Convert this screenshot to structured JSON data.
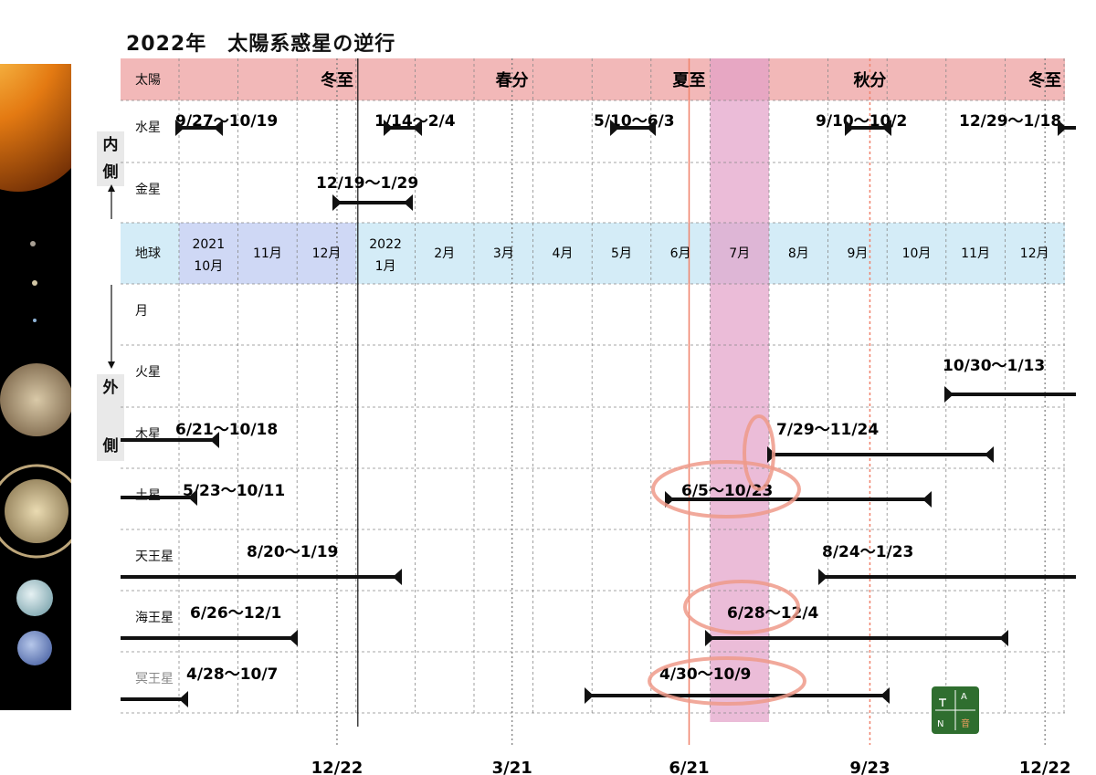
{
  "title": "2022年　太陽系惑星の逆行",
  "side": {
    "inner": [
      "内",
      "側"
    ],
    "outer": [
      "外",
      "側"
    ]
  },
  "rows": [
    {
      "label": "太陽",
      "key": "sun"
    },
    {
      "label": "水星",
      "key": "mercury"
    },
    {
      "label": "金星",
      "key": "venus"
    },
    {
      "label": "地球",
      "key": "earth"
    },
    {
      "label": "月",
      "key": "moon"
    },
    {
      "label": "火星",
      "key": "mars"
    },
    {
      "label": "木星",
      "key": "jupiter"
    },
    {
      "label": "土星",
      "key": "saturn"
    },
    {
      "label": "天王星",
      "key": "uranus"
    },
    {
      "label": "海王星",
      "key": "neptune"
    },
    {
      "label": "冥王星",
      "key": "pluto"
    }
  ],
  "sun_markers": [
    "冬至",
    "春分",
    "夏至",
    "秋分",
    "冬至"
  ],
  "months": [
    "2021\n10月",
    "11月",
    "12月",
    "2022\n1月",
    "2月",
    "3月",
    "4月",
    "5月",
    "6月",
    "7月",
    "8月",
    "9月",
    "10月",
    "11月",
    "12月"
  ],
  "bottom_dates": [
    "12/22",
    "3/21",
    "6/21",
    "9/23",
    "12/22"
  ],
  "retrogrades": [
    {
      "planet": "mercury",
      "label": "9/27〜10/19"
    },
    {
      "planet": "mercury",
      "label": "1/14〜2/4"
    },
    {
      "planet": "mercury",
      "label": "5/10〜6/3"
    },
    {
      "planet": "mercury",
      "label": "9/10〜10/2"
    },
    {
      "planet": "mercury",
      "label": "12/29〜1/18"
    },
    {
      "planet": "venus",
      "label": "12/19〜1/29"
    },
    {
      "planet": "mars",
      "label": "10/30〜1/13"
    },
    {
      "planet": "jupiter",
      "label": "6/21〜10/18"
    },
    {
      "planet": "jupiter",
      "label": "7/29〜11/24"
    },
    {
      "planet": "saturn",
      "label": "5/23〜10/11"
    },
    {
      "planet": "saturn",
      "label": "6/5〜10/23"
    },
    {
      "planet": "uranus",
      "label": "8/20〜1/19"
    },
    {
      "planet": "uranus",
      "label": "8/24〜1/23"
    },
    {
      "planet": "neptune",
      "label": "6/26〜12/1"
    },
    {
      "planet": "neptune",
      "label": "6/28〜12/4"
    },
    {
      "planet": "pluto",
      "label": "4/28〜10/7"
    },
    {
      "planet": "pluto",
      "label": "4/30〜10/9"
    }
  ],
  "highlight_month": "7月",
  "colors": {
    "sun_band": "#f2b8b8",
    "earth_band": "#d4ecf7",
    "earth_band_2021": "#cfd8f5",
    "july_column": "#e3a0c8",
    "circle": "#ef9a8a",
    "solstice_line": "#f0826b",
    "bar": "#111111",
    "logo": "#2f6e2f"
  },
  "logo": {
    "text": [
      "A",
      "N",
      "音"
    ]
  }
}
